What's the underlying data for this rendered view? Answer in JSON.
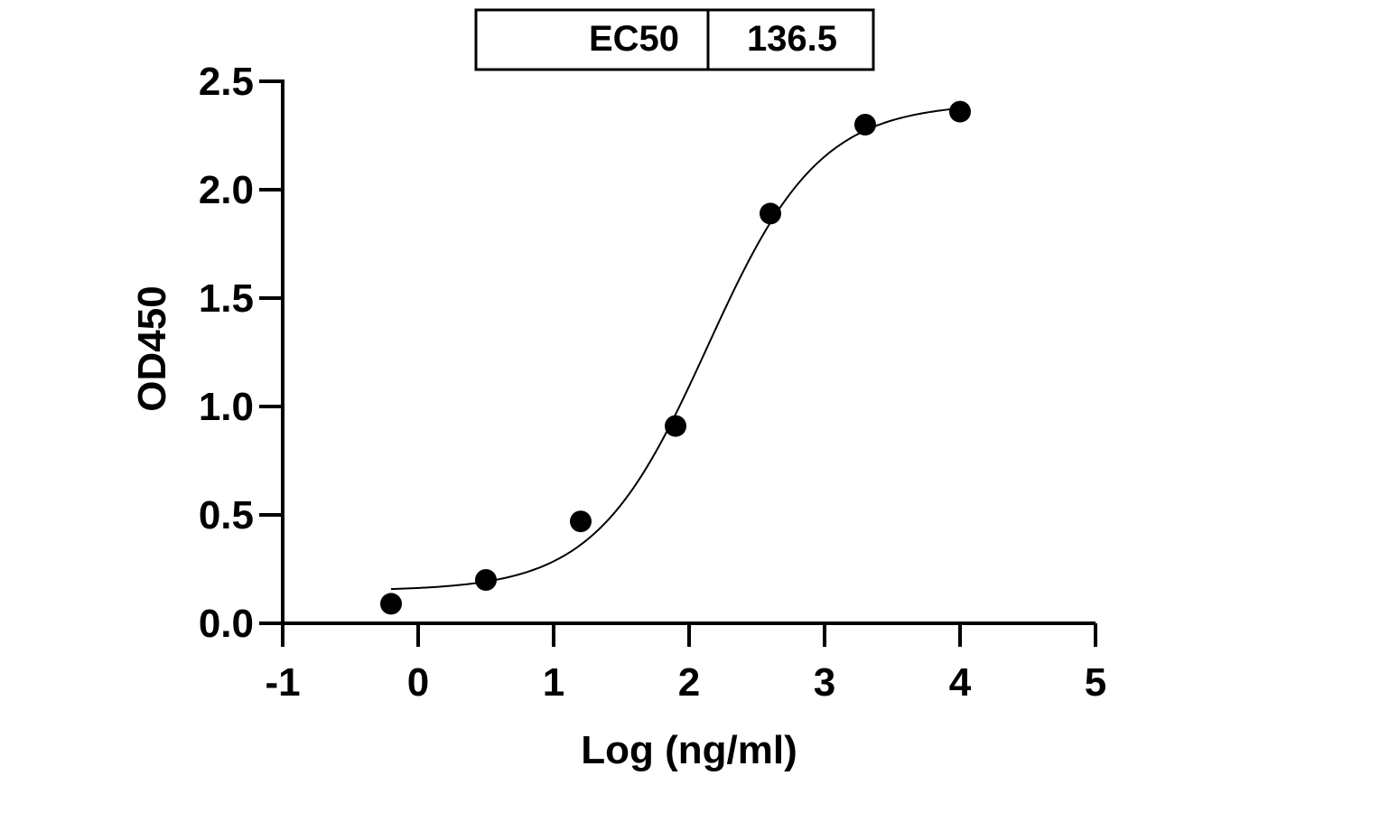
{
  "ec50_table": {
    "label": "EC50",
    "value": "136.5"
  },
  "chart_data": {
    "type": "scatter",
    "xlabel": "Log (ng/ml)",
    "ylabel": "OD450",
    "xlim": [
      -1,
      5
    ],
    "ylim": [
      0,
      2.5
    ],
    "x_ticks": [
      -1,
      0,
      1,
      2,
      3,
      4,
      5
    ],
    "y_ticks": [
      0.0,
      0.5,
      1.0,
      1.5,
      2.0,
      2.5
    ],
    "x_tick_labels": [
      "-1",
      "0",
      "1",
      "2",
      "3",
      "4",
      "5"
    ],
    "y_tick_labels": [
      "0.0",
      "0.5",
      "1.0",
      "1.5",
      "2.0",
      "2.5"
    ],
    "grid": false,
    "series": [
      {
        "points": [
          {
            "x": -0.2,
            "y": 0.09
          },
          {
            "x": 0.5,
            "y": 0.2
          },
          {
            "x": 1.2,
            "y": 0.47
          },
          {
            "x": 1.9,
            "y": 0.91
          },
          {
            "x": 2.6,
            "y": 1.89
          },
          {
            "x": 3.3,
            "y": 2.3
          },
          {
            "x": 4.0,
            "y": 2.36
          }
        ],
        "marker_color": "#000000"
      }
    ],
    "fit_curve": {
      "model": "4PL",
      "bottom": 0.15,
      "top": 2.4,
      "log_ec50": 2.135,
      "hill_slope": 1.05,
      "x_range": [
        -0.2,
        4.0
      ],
      "color": "#000000"
    }
  }
}
